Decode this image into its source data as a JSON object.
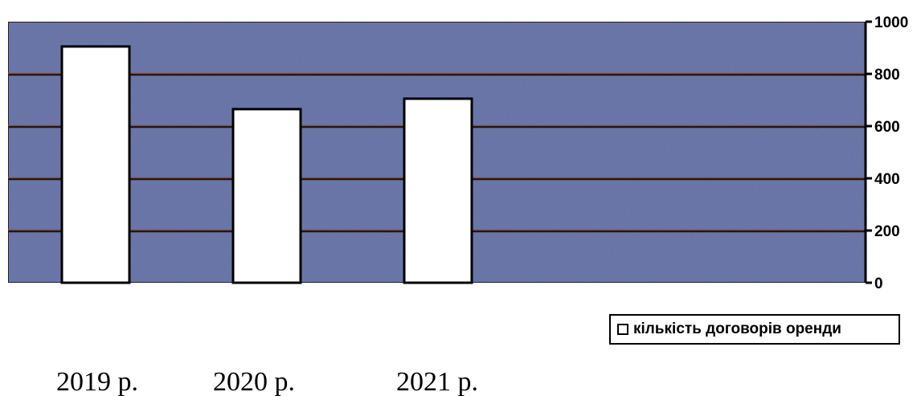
{
  "chart_data": {
    "type": "bar",
    "categories": [
      "2019 р.",
      "2020 р.",
      "2021 р."
    ],
    "series": [
      {
        "name": "кількість  договорів оренди",
        "values": [
          905,
          665,
          705
        ]
      }
    ],
    "ylim": [
      0,
      1000
    ],
    "yticks": [
      0,
      200,
      400,
      600,
      800,
      1000
    ],
    "y_axis_side": "right",
    "grid": true,
    "legend_position": "bottom-right",
    "colors": {
      "plot_background": "#6f7aae",
      "gridline": "#1a1a1a",
      "gridline_highlight": "#a3543d",
      "bar_fill": "#ffffff",
      "bar_stroke": "#000000"
    }
  }
}
